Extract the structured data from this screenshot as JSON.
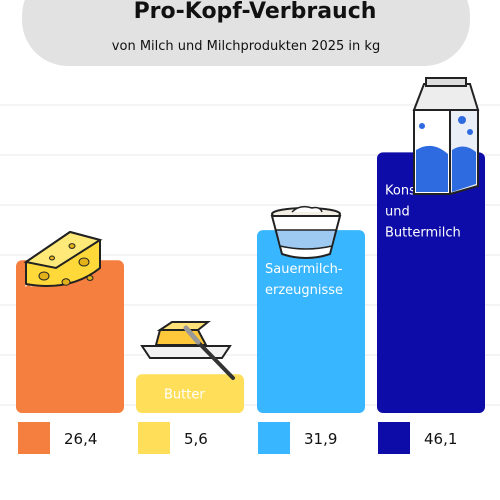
{
  "chart_data": {
    "type": "bar",
    "title": "Pro-Kopf-Verbrauch",
    "subtitle": "von Milch und Milchprodukten 2025 in kg",
    "categories": [
      "Käse",
      "Butter",
      "Sauermilch-\nerzeugnisse",
      "Konsum-\nund\nButtermilch"
    ],
    "values": [
      26.4,
      5.6,
      31.9,
      46.1
    ],
    "value_labels": [
      "26,4",
      "5,6",
      "31,9",
      "46,1"
    ],
    "colors": [
      "#F47F3E",
      "#FFDE59",
      "#38B6FF",
      "#0E0CA8"
    ],
    "category_label_colors": [
      "#ffffff",
      "#ffffff",
      "#ffffff",
      "#ffffff"
    ],
    "icons": [
      "cheese-icon",
      "butter-icon",
      "yogurt-cup-icon",
      "milk-carton-icon"
    ],
    "ylim": [
      0,
      52
    ],
    "xlabel": "",
    "ylabel": "",
    "grid": true,
    "legend": "bottom"
  }
}
